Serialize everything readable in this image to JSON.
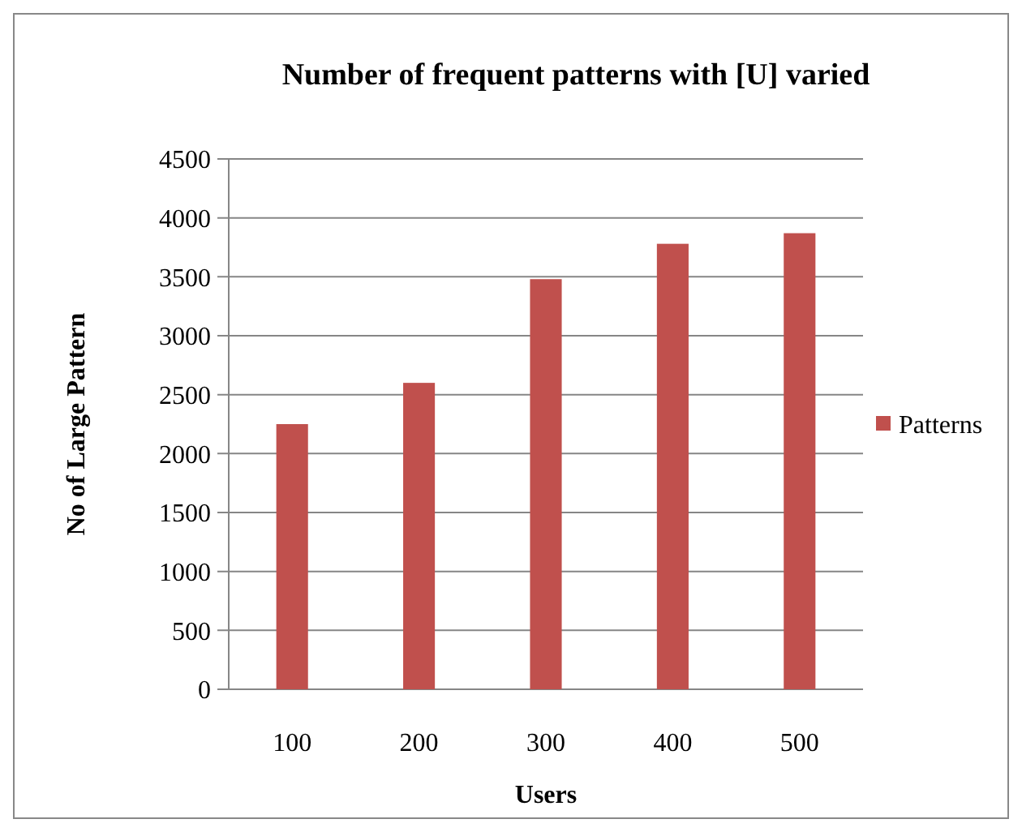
{
  "chart_data": {
    "type": "bar",
    "title": "Number of frequent patterns with [U] varied",
    "xlabel": "Users",
    "ylabel": "No of Large Pattern",
    "categories": [
      "100",
      "200",
      "300",
      "400",
      "500"
    ],
    "series": [
      {
        "name": "Patterns",
        "color": "#c0504d",
        "values": [
          2250,
          2600,
          3480,
          3780,
          3870
        ]
      }
    ],
    "ylim": [
      0,
      4500
    ],
    "yticks": [
      0,
      500,
      1000,
      1500,
      2000,
      2500,
      3000,
      3500,
      4000,
      4500
    ],
    "grid": "y",
    "legend": "right"
  }
}
